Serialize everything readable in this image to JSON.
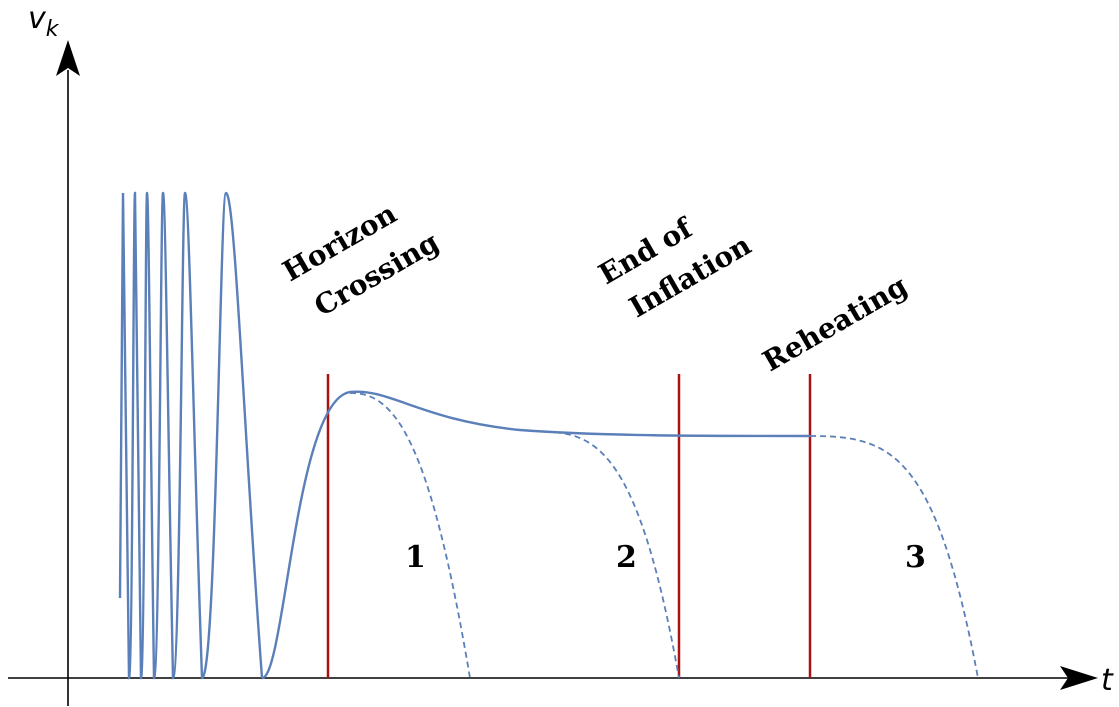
{
  "diagram": {
    "y_axis_label": "v",
    "y_axis_subscript": "k",
    "x_axis_label": "t",
    "annotations": {
      "horizon_line1": "Horizon",
      "horizon_line2": "Crossing",
      "end_line1": "End of",
      "end_line2": "Inflation",
      "reheating": "Reheating"
    },
    "curve_labels": [
      "1",
      "2",
      "3"
    ],
    "colors": {
      "mode_curve": "#5b7fb8",
      "marker_lines": "#aa1111",
      "axes": "#000000"
    }
  }
}
